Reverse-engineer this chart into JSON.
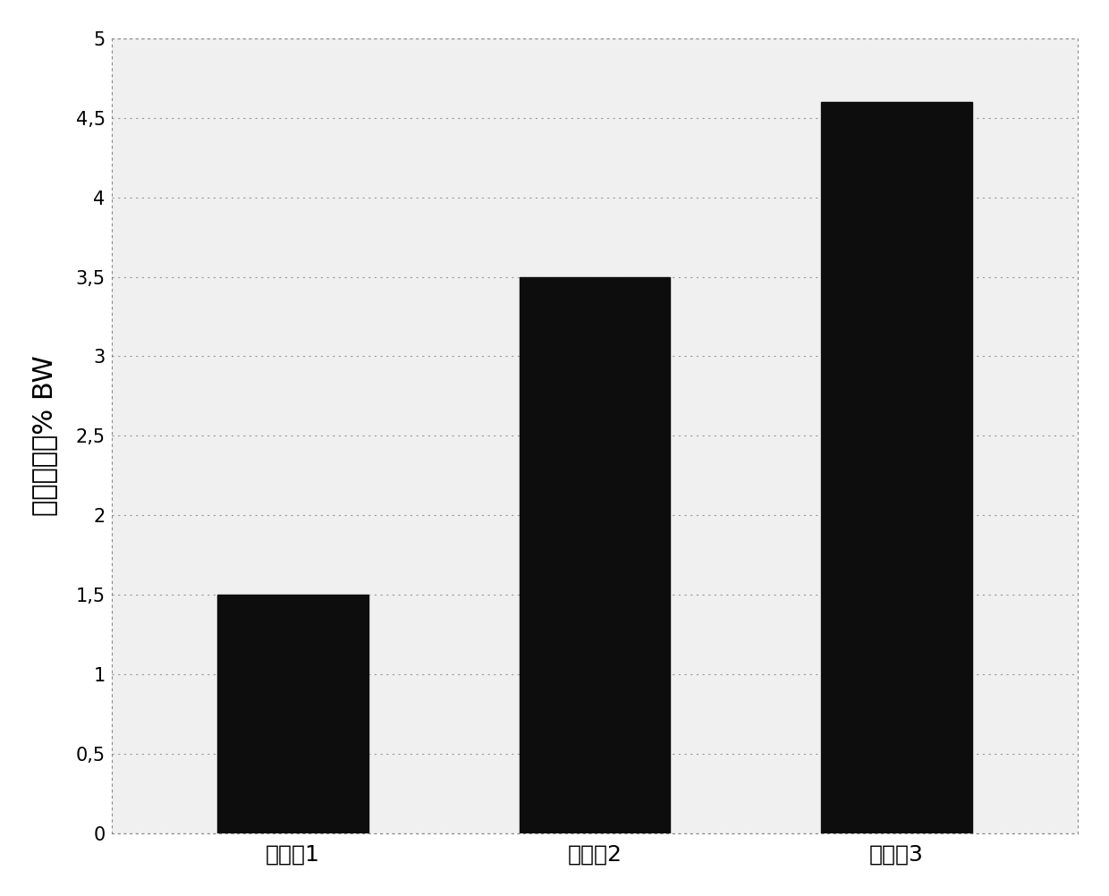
{
  "categories": [
    "组合爇1",
    "组合爇2",
    "组合爇3"
  ],
  "values": [
    1.5,
    3.5,
    4.6
  ],
  "bar_color": "#0d0d0d",
  "bar_width": 0.5,
  "ylabel": "体重减轻，% BW",
  "ylim": [
    0,
    5
  ],
  "yticks": [
    0,
    0.5,
    1,
    1.5,
    2,
    2.5,
    3,
    3.5,
    4,
    4.5,
    5
  ],
  "ytick_labels": [
    "0",
    "0,5",
    "1",
    "1,5",
    "2",
    "2,5",
    "3",
    "3,5",
    "4",
    "4,5",
    "5"
  ],
  "grid_color": "#999999",
  "background_color": "#ffffff",
  "plot_bg_color": "#f0f0f0",
  "tick_fontsize": 15,
  "ylabel_fontsize": 22,
  "xlabel_fontsize": 18,
  "border_color": "#888888",
  "border_linewidth": 0.8
}
